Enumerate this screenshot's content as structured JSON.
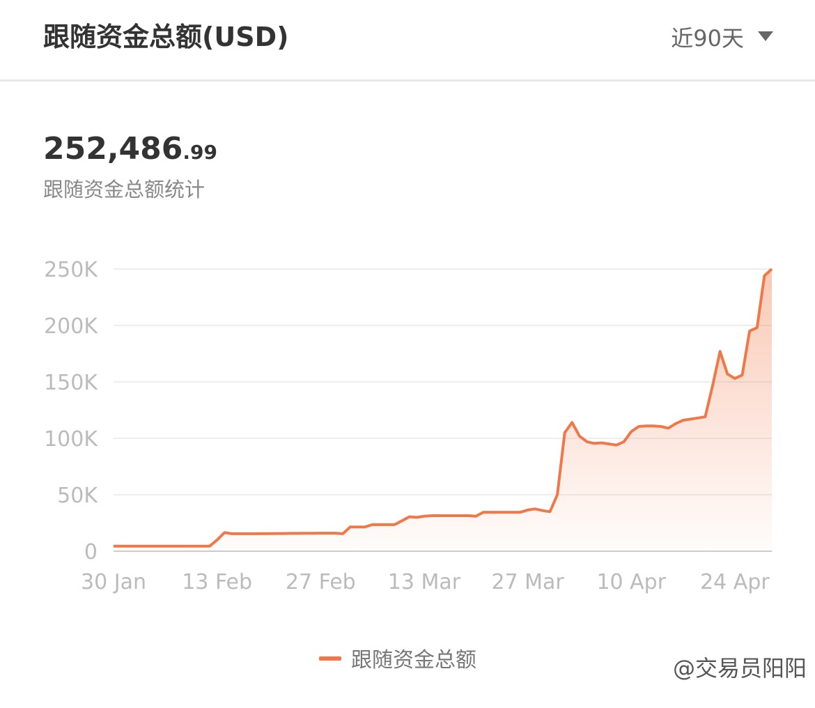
{
  "header": {
    "title": "跟随资金总额(USD)",
    "range": "近90天"
  },
  "summary": {
    "value_main": "252,486",
    "value_decimal": ".99",
    "label": "跟随资金总额统计"
  },
  "watermark": "@交易员阳阳",
  "chart_data": {
    "type": "line",
    "x": [
      "30 Jan",
      "31 Jan",
      "1 Feb",
      "2 Feb",
      "3 Feb",
      "4 Feb",
      "5 Feb",
      "6 Feb",
      "7 Feb",
      "8 Feb",
      "9 Feb",
      "10 Feb",
      "11 Feb",
      "12 Feb",
      "13 Feb",
      "14 Feb",
      "15 Feb",
      "16 Feb",
      "17 Feb",
      "18 Feb",
      "19 Feb",
      "20 Feb",
      "21 Feb",
      "22 Feb",
      "23 Feb",
      "24 Feb",
      "25 Feb",
      "26 Feb",
      "27 Feb",
      "28 Feb",
      "1 Mar",
      "2 Mar",
      "3 Mar",
      "4 Mar",
      "5 Mar",
      "6 Mar",
      "7 Mar",
      "8 Mar",
      "9 Mar",
      "10 Mar",
      "11 Mar",
      "12 Mar",
      "13 Mar",
      "14 Mar",
      "15 Mar",
      "16 Mar",
      "17 Mar",
      "18 Mar",
      "19 Mar",
      "20 Mar",
      "21 Mar",
      "22 Mar",
      "23 Mar",
      "24 Mar",
      "25 Mar",
      "26 Mar",
      "27 Mar",
      "28 Mar",
      "29 Mar",
      "30 Mar",
      "31 Mar",
      "1 Apr",
      "2 Apr",
      "3 Apr",
      "4 Apr",
      "5 Apr",
      "6 Apr",
      "7 Apr",
      "8 Apr",
      "9 Apr",
      "10 Apr",
      "11 Apr",
      "12 Apr",
      "13 Apr",
      "14 Apr",
      "15 Apr",
      "16 Apr",
      "17 Apr",
      "18 Apr",
      "19 Apr",
      "20 Apr",
      "21 Apr",
      "22 Apr",
      "23 Apr",
      "24 Apr",
      "25 Apr",
      "26 Apr",
      "27 Apr",
      "28 Apr",
      "29 Apr"
    ],
    "series": [
      {
        "name": "跟随资金总额",
        "color": "#f07848",
        "values": [
          4500,
          4500,
          4500,
          4500,
          4500,
          4500,
          4500,
          4500,
          4500,
          4500,
          4500,
          4500,
          4500,
          4500,
          10000,
          16500,
          15500,
          15500,
          15500,
          15500,
          15600,
          15600,
          15700,
          15700,
          15800,
          15800,
          15900,
          15900,
          16000,
          16000,
          16000,
          15500,
          21500,
          21500,
          21500,
          23500,
          23500,
          23500,
          23500,
          27000,
          30500,
          30000,
          31000,
          31500,
          31500,
          31500,
          31500,
          31500,
          31500,
          31000,
          34500,
          34500,
          34500,
          34500,
          34500,
          34500,
          36500,
          37500,
          36000,
          35000,
          50000,
          105000,
          114000,
          102000,
          97000,
          95500,
          96000,
          95000,
          94000,
          97000,
          106000,
          110500,
          111000,
          111000,
          110500,
          109000,
          113000,
          116000,
          117000,
          118000,
          119000,
          147000,
          177000,
          157000,
          153000,
          156000,
          195000,
          198000,
          244000,
          250000
        ]
      }
    ],
    "xticks": [
      "30 Jan",
      "13 Feb",
      "27 Feb",
      "13 Mar",
      "27 Mar",
      "10 Apr",
      "24 Apr"
    ],
    "ylim": [
      0,
      250000
    ],
    "yticks": [
      0,
      {
        "value": 50000,
        "label": "50K"
      },
      {
        "value": 100000,
        "label": "100K"
      },
      {
        "value": 150000,
        "label": "150K"
      },
      {
        "value": 200000,
        "label": "200K"
      },
      {
        "value": 250000,
        "label": "250K"
      }
    ],
    "grid": true
  }
}
